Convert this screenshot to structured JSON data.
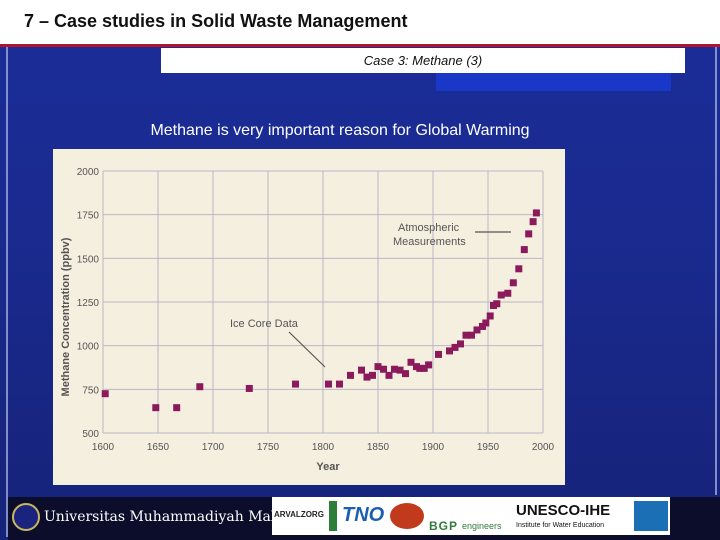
{
  "header": {
    "title": "7 – Case studies in Solid Waste Management"
  },
  "subtitle": "Case 3: Methane (3)",
  "intro_text": "Methane is very important reason for Global Warming",
  "footer": {
    "university": "Universitas Muhammadiyah Malang",
    "logo_arvalzorg": "ARVALZORG",
    "logo_tno": "TNO",
    "logo_bgp": "BGP",
    "logo_bgp_suffix": "engineers",
    "logo_unesco": "UNESCO-IHE",
    "logo_unesco_sub": "Institute for Water Education"
  },
  "colors": {
    "accent": "#b3122b",
    "marker": "#8b1a5c",
    "panel": "#f5efe0",
    "grid": "#b9b7c4"
  },
  "chart_data": {
    "type": "scatter",
    "xlabel": "Year",
    "ylabel": "Methane Concentration (ppbv)",
    "xlim": [
      1600,
      2000
    ],
    "ylim": [
      500,
      2000
    ],
    "xticks": [
      "1600",
      "1650",
      "1700",
      "1750",
      "1800",
      "1850",
      "1900",
      "1950",
      "2000"
    ],
    "yticks": [
      "500",
      "750",
      "1000",
      "1250",
      "1500",
      "1750",
      "2000"
    ],
    "grid": true,
    "annotations": [
      "Atmospheric",
      "Measurements",
      "Ice Core Data"
    ],
    "points": [
      [
        1602,
        725
      ],
      [
        1648,
        645
      ],
      [
        1667,
        645
      ],
      [
        1688,
        765
      ],
      [
        1733,
        755
      ],
      [
        1775,
        780
      ],
      [
        1805,
        780
      ],
      [
        1815,
        780
      ],
      [
        1825,
        830
      ],
      [
        1835,
        860
      ],
      [
        1840,
        820
      ],
      [
        1845,
        830
      ],
      [
        1850,
        880
      ],
      [
        1855,
        865
      ],
      [
        1860,
        830
      ],
      [
        1865,
        865
      ],
      [
        1870,
        860
      ],
      [
        1875,
        840
      ],
      [
        1880,
        905
      ],
      [
        1885,
        880
      ],
      [
        1888,
        870
      ],
      [
        1892,
        870
      ],
      [
        1896,
        890
      ],
      [
        1905,
        950
      ],
      [
        1915,
        970
      ],
      [
        1920,
        990
      ],
      [
        1925,
        1010
      ],
      [
        1930,
        1060
      ],
      [
        1935,
        1060
      ],
      [
        1940,
        1090
      ],
      [
        1945,
        1110
      ],
      [
        1948,
        1130
      ],
      [
        1952,
        1170
      ],
      [
        1955,
        1230
      ],
      [
        1958,
        1240
      ],
      [
        1962,
        1290
      ],
      [
        1968,
        1300
      ],
      [
        1973,
        1360
      ],
      [
        1978,
        1440
      ],
      [
        1983,
        1550
      ],
      [
        1987,
        1640
      ],
      [
        1991,
        1710
      ],
      [
        1994,
        1760
      ]
    ]
  }
}
